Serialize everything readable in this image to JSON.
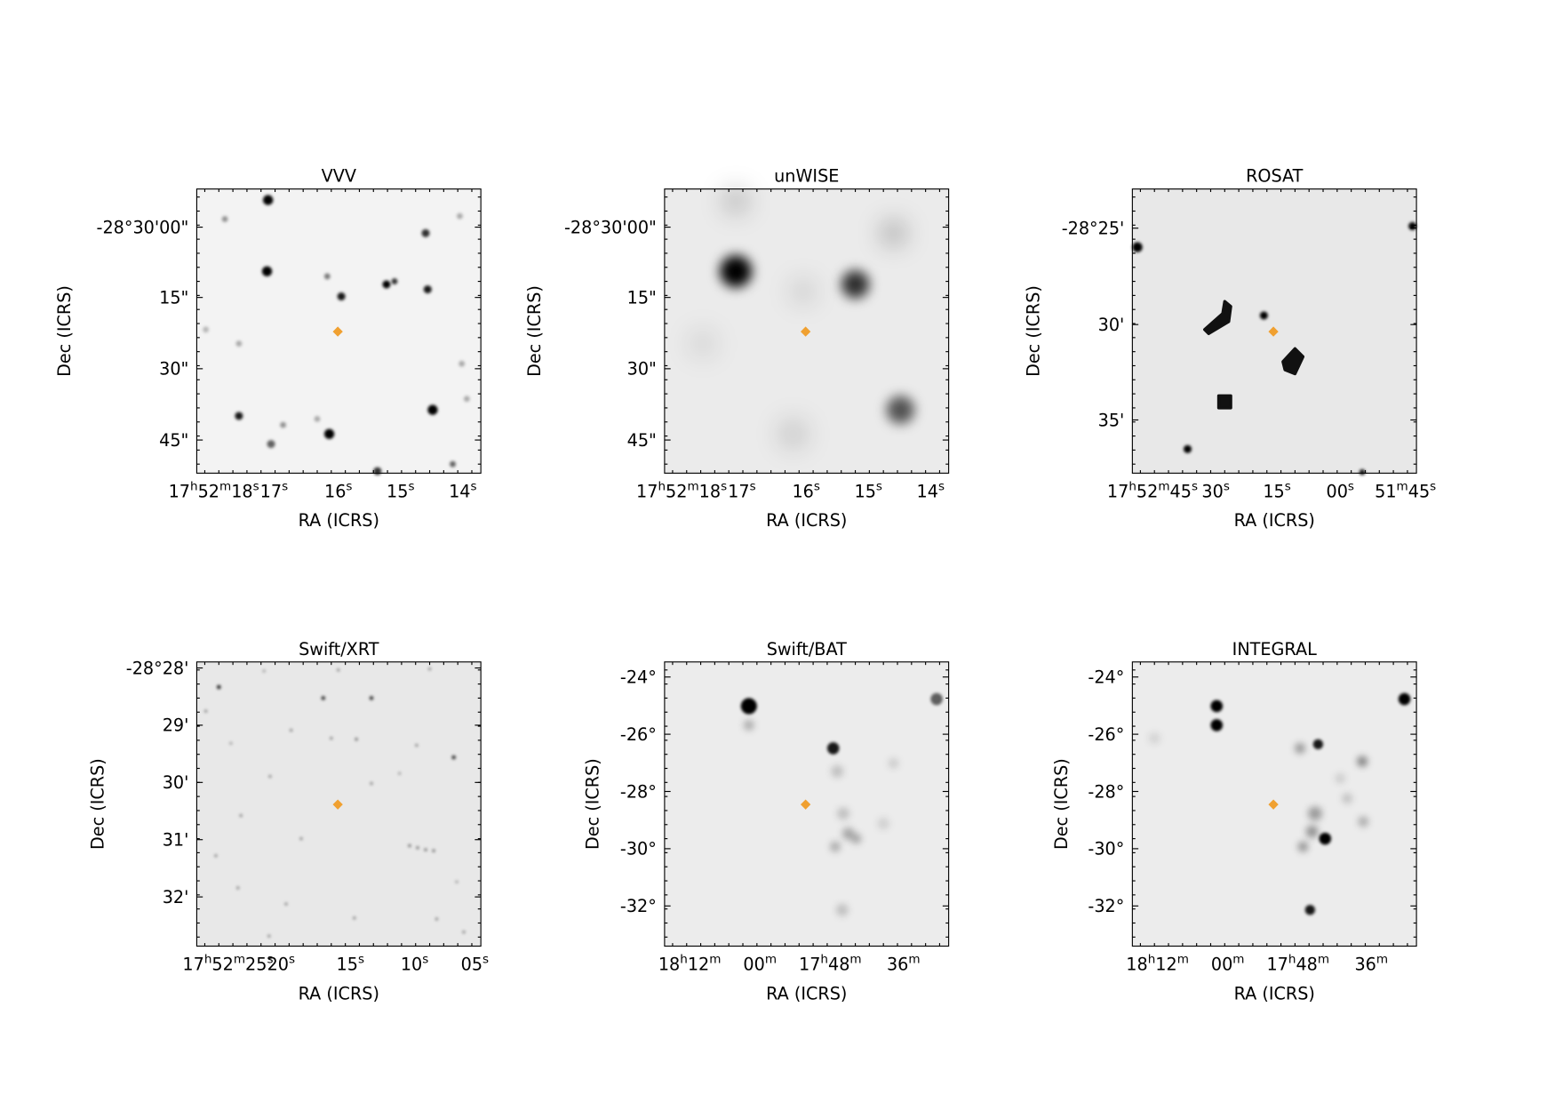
{
  "panels": [
    {
      "title": "VVV",
      "x_label": "RA (ICRS)",
      "y_label": "Dec (ICRS)",
      "x_ticks": [
        "17h52m18s",
        "17s",
        "16s",
        "15s",
        "14s"
      ],
      "y_ticks": [
        "-28°30'00\"",
        "15\"",
        "30\"",
        "45\""
      ]
    },
    {
      "title": "unWISE",
      "x_label": "RA (ICRS)",
      "y_label": "Dec (ICRS)",
      "x_ticks": [
        "17h52m18s",
        "17s",
        "16s",
        "15s",
        "14s"
      ],
      "y_ticks": [
        "-28°30'00\"",
        "15\"",
        "30\"",
        "45\""
      ]
    },
    {
      "title": "ROSAT",
      "x_label": "RA (ICRS)",
      "y_label": "Dec (ICRS)",
      "x_ticks": [
        "17h52m45s",
        "30s",
        "15s",
        "00s",
        "51m45s"
      ],
      "y_ticks": [
        "-28°25'",
        "30'",
        "35'"
      ]
    },
    {
      "title": "Swift/XRT",
      "x_label": "RA (ICRS)",
      "y_label": "Dec (ICRS)",
      "x_ticks": [
        "17h52m25s",
        "20s",
        "15s",
        "10s",
        "05s"
      ],
      "y_ticks": [
        "-28°28'",
        "29'",
        "30'",
        "31'",
        "32'"
      ]
    },
    {
      "title": "Swift/BAT",
      "x_label": "RA (ICRS)",
      "y_label": "Dec (ICRS)",
      "x_ticks": [
        "18h12m",
        "00m",
        "17h48m",
        "36m"
      ],
      "y_ticks": [
        "-24°",
        "-26°",
        "-28°",
        "-30°",
        "-32°"
      ]
    },
    {
      "title": "INTEGRAL",
      "x_label": "RA (ICRS)",
      "y_label": "Dec (ICRS)",
      "x_ticks": [
        "18h12m",
        "00m",
        "17h48m",
        "36m"
      ],
      "y_ticks": [
        "-24°",
        "-26°",
        "-28°",
        "-30°",
        "-32°"
      ]
    }
  ]
}
